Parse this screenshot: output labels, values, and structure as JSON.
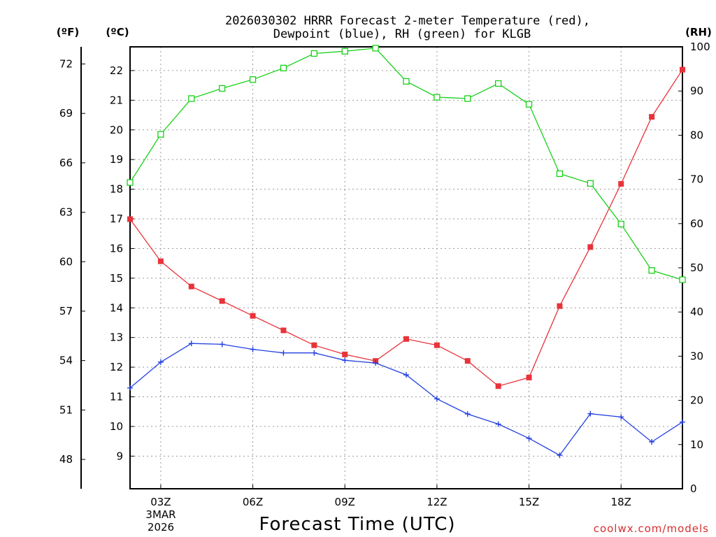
{
  "title": {
    "line1": "2026030302 HRRR Forecast 2-meter Temperature (red),",
    "line2": "Dewpoint (blue), RH (green) for KLGB"
  },
  "units": {
    "f": "(ºF)",
    "c": "(ºC)",
    "rh": "(RH)"
  },
  "credit": "coolwx.com/models",
  "colors": {
    "temp": "#e8333a",
    "dewpoint": "#2440e0",
    "rh": "#18d018"
  },
  "chart_data": {
    "type": "line",
    "title": "2026030302 HRRR Forecast 2-meter Temperature (red), Dewpoint (blue), RH (green) for KLGB",
    "xlabel": "Forecast Time (UTC)",
    "x": [
      2,
      3,
      4,
      5,
      6,
      7,
      8,
      9,
      10,
      11,
      12,
      13,
      14,
      15,
      16,
      17,
      18,
      19,
      20
    ],
    "xlim": [
      2,
      20
    ],
    "xticks": [
      {
        "x": 3,
        "label": "03Z"
      },
      {
        "x": 6,
        "label": "06Z"
      },
      {
        "x": 9,
        "label": "09Z"
      },
      {
        "x": 12,
        "label": "12Z"
      },
      {
        "x": 15,
        "label": "15Z"
      },
      {
        "x": 18,
        "label": "18Z"
      }
    ],
    "date_label": [
      "3MAR",
      "2026"
    ],
    "ylim_c": [
      7.9,
      22.8
    ],
    "yticks_c": [
      9,
      10,
      11,
      12,
      13,
      14,
      15,
      16,
      17,
      18,
      19,
      20,
      21,
      22
    ],
    "yticks_f": [
      48,
      51,
      54,
      57,
      60,
      63,
      66,
      69,
      72
    ],
    "ylim_rh": [
      0,
      100
    ],
    "yticks_rh": [
      0,
      10,
      20,
      30,
      40,
      50,
      60,
      70,
      80,
      90,
      100
    ],
    "series": [
      {
        "name": "Temperature",
        "axis": "c",
        "marker": "square-filled",
        "values": [
          16.99,
          15.57,
          14.72,
          14.23,
          13.73,
          13.24,
          12.74,
          12.43,
          12.21,
          12.95,
          12.74,
          12.21,
          11.36,
          11.65,
          14.06,
          16.05,
          18.18,
          20.44,
          22.03
        ]
      },
      {
        "name": "Dewpoint",
        "axis": "c",
        "marker": "plus",
        "values": [
          11.3,
          12.17,
          12.8,
          12.77,
          12.6,
          12.48,
          12.48,
          12.23,
          12.14,
          11.74,
          10.93,
          10.42,
          10.08,
          9.6,
          9.03,
          10.43,
          10.32,
          9.48,
          10.15
        ]
      },
      {
        "name": "RH",
        "axis": "rh",
        "marker": "square-open",
        "values": [
          69.3,
          80.2,
          88.3,
          90.6,
          92.6,
          95.2,
          98.5,
          99.0,
          99.7,
          92.2,
          88.6,
          88.3,
          91.7,
          87.0,
          71.3,
          69.1,
          59.9,
          49.4,
          47.3
        ]
      }
    ]
  }
}
